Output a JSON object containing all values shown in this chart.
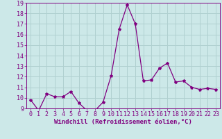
{
  "x": [
    0,
    1,
    2,
    3,
    4,
    5,
    6,
    7,
    8,
    9,
    10,
    11,
    12,
    13,
    14,
    15,
    16,
    17,
    18,
    19,
    20,
    21,
    22,
    23
  ],
  "y": [
    9.8,
    8.8,
    10.4,
    10.1,
    10.1,
    10.6,
    9.5,
    8.8,
    8.8,
    9.6,
    12.1,
    16.5,
    18.8,
    17.0,
    11.6,
    11.7,
    12.8,
    13.3,
    11.5,
    11.6,
    11.0,
    10.8,
    10.9,
    10.8
  ],
  "line_color": "#800080",
  "marker": "*",
  "marker_size": 3,
  "bg_color": "#cce8e8",
  "grid_color": "#b0d0d0",
  "xlabel": "Windchill (Refroidissement éolien,°C)",
  "ylabel": "",
  "ylim": [
    9,
    19
  ],
  "xlim": [
    -0.5,
    23.5
  ],
  "yticks": [
    9,
    10,
    11,
    12,
    13,
    14,
    15,
    16,
    17,
    18,
    19
  ],
  "xticks": [
    0,
    1,
    2,
    3,
    4,
    5,
    6,
    7,
    8,
    9,
    10,
    11,
    12,
    13,
    14,
    15,
    16,
    17,
    18,
    19,
    20,
    21,
    22,
    23
  ],
  "xlabel_fontsize": 6.5,
  "tick_fontsize": 6.0,
  "line_width": 0.9
}
